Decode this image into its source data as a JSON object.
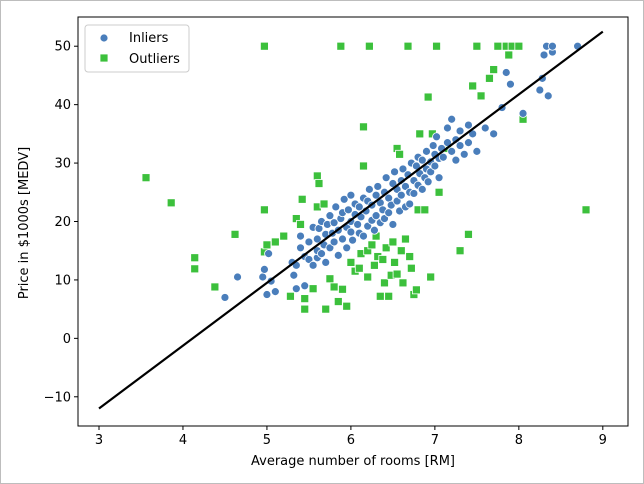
{
  "chart_data": {
    "type": "scatter",
    "xlabel": "Average number of rooms [RM]",
    "ylabel": "Price in $1000s [MEDV]",
    "xlim": [
      2.75,
      9.3
    ],
    "ylim": [
      -15,
      55
    ],
    "xticks": [
      3,
      4,
      5,
      6,
      7,
      8,
      9
    ],
    "yticks": [
      -10,
      0,
      10,
      20,
      30,
      40,
      50
    ],
    "legend_position": "top-left",
    "grid": false,
    "series": [
      {
        "name": "Inliers",
        "marker": "circle",
        "color": "#4a7ebb",
        "points": [
          [
            4.5,
            7.0
          ],
          [
            4.65,
            10.5
          ],
          [
            4.95,
            10.5
          ],
          [
            4.97,
            11.8
          ],
          [
            5.0,
            7.5
          ],
          [
            5.05,
            9.8
          ],
          [
            5.1,
            8.0
          ],
          [
            5.02,
            14.5
          ],
          [
            5.3,
            13.0
          ],
          [
            5.32,
            10.8
          ],
          [
            5.35,
            12.5
          ],
          [
            5.35,
            8.5
          ],
          [
            5.4,
            15.5
          ],
          [
            5.4,
            17.5
          ],
          [
            5.45,
            14.0
          ],
          [
            5.45,
            9.0
          ],
          [
            5.5,
            13.5
          ],
          [
            5.5,
            16.5
          ],
          [
            5.55,
            12.5
          ],
          [
            5.55,
            19.0
          ],
          [
            5.6,
            13.8
          ],
          [
            5.6,
            15.0
          ],
          [
            5.6,
            17.0
          ],
          [
            5.62,
            18.8
          ],
          [
            5.65,
            14.5
          ],
          [
            5.65,
            20.0
          ],
          [
            5.68,
            16.0
          ],
          [
            5.7,
            13.0
          ],
          [
            5.7,
            17.8
          ],
          [
            5.72,
            19.5
          ],
          [
            5.75,
            15.5
          ],
          [
            5.75,
            21.0
          ],
          [
            5.78,
            18.0
          ],
          [
            5.8,
            16.5
          ],
          [
            5.8,
            19.8
          ],
          [
            5.82,
            22.5
          ],
          [
            5.85,
            14.2
          ],
          [
            5.85,
            18.5
          ],
          [
            5.88,
            20.5
          ],
          [
            5.9,
            17.0
          ],
          [
            5.9,
            21.5
          ],
          [
            5.92,
            23.8
          ],
          [
            5.95,
            19.0
          ],
          [
            5.95,
            15.5
          ],
          [
            5.97,
            22.0
          ],
          [
            6.0,
            18.2
          ],
          [
            6.0,
            20.0
          ],
          [
            6.0,
            24.5
          ],
          [
            6.02,
            16.8
          ],
          [
            6.05,
            21.2
          ],
          [
            6.05,
            23.0
          ],
          [
            6.08,
            19.5
          ],
          [
            6.1,
            18.0
          ],
          [
            6.1,
            22.5
          ],
          [
            6.12,
            20.8
          ],
          [
            6.15,
            24.0
          ],
          [
            6.15,
            17.5
          ],
          [
            6.18,
            21.8
          ],
          [
            6.2,
            19.2
          ],
          [
            6.2,
            23.5
          ],
          [
            6.22,
            25.5
          ],
          [
            6.25,
            20.2
          ],
          [
            6.25,
            22.8
          ],
          [
            6.28,
            18.5
          ],
          [
            6.3,
            24.5
          ],
          [
            6.3,
            21.0
          ],
          [
            6.32,
            26.0
          ],
          [
            6.35,
            19.8
          ],
          [
            6.35,
            23.2
          ],
          [
            6.38,
            22.0
          ],
          [
            6.4,
            25.0
          ],
          [
            6.4,
            20.5
          ],
          [
            6.42,
            27.5
          ],
          [
            6.45,
            21.5
          ],
          [
            6.45,
            24.0
          ],
          [
            6.48,
            22.8
          ],
          [
            6.5,
            26.5
          ],
          [
            6.5,
            19.5
          ],
          [
            6.52,
            28.5
          ],
          [
            6.55,
            23.5
          ],
          [
            6.55,
            25.5
          ],
          [
            6.58,
            21.8
          ],
          [
            6.6,
            27.0
          ],
          [
            6.6,
            24.5
          ],
          [
            6.62,
            29.0
          ],
          [
            6.65,
            22.5
          ],
          [
            6.65,
            26.0
          ],
          [
            6.68,
            28.0
          ],
          [
            6.7,
            25.0
          ],
          [
            6.7,
            23.0
          ],
          [
            6.72,
            30.0
          ],
          [
            6.75,
            27.0
          ],
          [
            6.75,
            24.8
          ],
          [
            6.78,
            29.5
          ],
          [
            6.8,
            26.2
          ],
          [
            6.8,
            31.0
          ],
          [
            6.82,
            28.2
          ],
          [
            6.85,
            25.5
          ],
          [
            6.85,
            30.5
          ],
          [
            6.88,
            27.5
          ],
          [
            6.9,
            29.0
          ],
          [
            6.9,
            32.0
          ],
          [
            6.92,
            26.8
          ],
          [
            6.95,
            30.2
          ],
          [
            6.95,
            28.5
          ],
          [
            6.98,
            33.0
          ],
          [
            7.0,
            31.5
          ],
          [
            7.0,
            29.5
          ],
          [
            7.02,
            34.5
          ],
          [
            7.05,
            30.8
          ],
          [
            7.05,
            27.5
          ],
          [
            7.08,
            32.5
          ],
          [
            7.1,
            31.0
          ],
          [
            7.15,
            33.5
          ],
          [
            7.15,
            36.0
          ],
          [
            7.2,
            32.0
          ],
          [
            7.2,
            37.5
          ],
          [
            7.25,
            34.0
          ],
          [
            7.25,
            30.5
          ],
          [
            7.3,
            35.5
          ],
          [
            7.3,
            33.0
          ],
          [
            7.35,
            31.5
          ],
          [
            7.4,
            36.5
          ],
          [
            7.4,
            33.5
          ],
          [
            7.45,
            35.0
          ],
          [
            7.5,
            32.0
          ],
          [
            7.6,
            36.0
          ],
          [
            7.7,
            35.0
          ],
          [
            7.8,
            39.5
          ],
          [
            7.85,
            45.5
          ],
          [
            7.9,
            43.5
          ],
          [
            8.05,
            38.5
          ],
          [
            8.25,
            42.5
          ],
          [
            8.28,
            44.5
          ],
          [
            8.35,
            41.5
          ],
          [
            8.3,
            48.5
          ],
          [
            8.4,
            49.0
          ],
          [
            8.33,
            50.0
          ],
          [
            8.4,
            50.0
          ],
          [
            8.7,
            50.0
          ]
        ]
      },
      {
        "name": "Outliers",
        "marker": "square",
        "color": "#3cc03c",
        "points": [
          [
            3.56,
            27.5
          ],
          [
            3.86,
            23.2
          ],
          [
            4.14,
            13.8
          ],
          [
            4.14,
            11.9
          ],
          [
            4.38,
            8.8
          ],
          [
            4.62,
            17.8
          ],
          [
            4.97,
            22.0
          ],
          [
            4.97,
            14.8
          ],
          [
            5.0,
            16.0
          ],
          [
            4.97,
            50.0
          ],
          [
            5.1,
            16.5
          ],
          [
            5.2,
            17.5
          ],
          [
            5.28,
            7.2
          ],
          [
            5.35,
            20.5
          ],
          [
            5.4,
            19.5
          ],
          [
            5.42,
            23.8
          ],
          [
            5.45,
            6.8
          ],
          [
            5.45,
            5.0
          ],
          [
            5.55,
            8.5
          ],
          [
            5.6,
            27.8
          ],
          [
            5.6,
            22.5
          ],
          [
            5.62,
            26.5
          ],
          [
            5.68,
            23.0
          ],
          [
            5.7,
            5.0
          ],
          [
            5.75,
            10.2
          ],
          [
            5.8,
            8.8
          ],
          [
            5.85,
            6.3
          ],
          [
            5.88,
            50.0
          ],
          [
            5.9,
            8.4
          ],
          [
            5.95,
            5.5
          ],
          [
            6.0,
            13.0
          ],
          [
            6.05,
            11.5
          ],
          [
            6.1,
            12.0
          ],
          [
            6.12,
            14.5
          ],
          [
            6.15,
            36.2
          ],
          [
            6.15,
            29.5
          ],
          [
            6.2,
            15.0
          ],
          [
            6.2,
            10.5
          ],
          [
            6.22,
            50.0
          ],
          [
            6.25,
            16.0
          ],
          [
            6.28,
            12.5
          ],
          [
            6.3,
            17.5
          ],
          [
            6.32,
            14.0
          ],
          [
            6.35,
            7.2
          ],
          [
            6.38,
            13.5
          ],
          [
            6.4,
            9.5
          ],
          [
            6.42,
            15.5
          ],
          [
            6.45,
            7.2
          ],
          [
            6.48,
            10.8
          ],
          [
            6.5,
            16.5
          ],
          [
            6.52,
            13.0
          ],
          [
            6.55,
            11.0
          ],
          [
            6.55,
            32.5
          ],
          [
            6.58,
            31.5
          ],
          [
            6.6,
            15.0
          ],
          [
            6.62,
            9.5
          ],
          [
            6.65,
            17.0
          ],
          [
            6.68,
            50.0
          ],
          [
            6.7,
            14.0
          ],
          [
            6.72,
            12.0
          ],
          [
            6.75,
            7.5
          ],
          [
            6.78,
            8.3
          ],
          [
            6.8,
            22.0
          ],
          [
            6.82,
            35.0
          ],
          [
            6.88,
            22.0
          ],
          [
            6.92,
            41.3
          ],
          [
            6.95,
            10.5
          ],
          [
            6.97,
            35.0
          ],
          [
            7.02,
            50.0
          ],
          [
            7.05,
            25.0
          ],
          [
            7.15,
            32.5
          ],
          [
            7.3,
            15.0
          ],
          [
            7.4,
            17.8
          ],
          [
            7.45,
            43.2
          ],
          [
            7.5,
            50.0
          ],
          [
            7.55,
            41.5
          ],
          [
            7.65,
            44.5
          ],
          [
            7.7,
            46.0
          ],
          [
            7.75,
            50.0
          ],
          [
            7.85,
            50.0
          ],
          [
            7.88,
            48.5
          ],
          [
            7.92,
            50.0
          ],
          [
            8.0,
            50.0
          ],
          [
            8.05,
            37.5
          ],
          [
            8.8,
            22.0
          ]
        ]
      }
    ],
    "fit_line": {
      "color": "#000000",
      "points": [
        [
          3,
          -12
        ],
        [
          9,
          52.5
        ]
      ]
    }
  }
}
